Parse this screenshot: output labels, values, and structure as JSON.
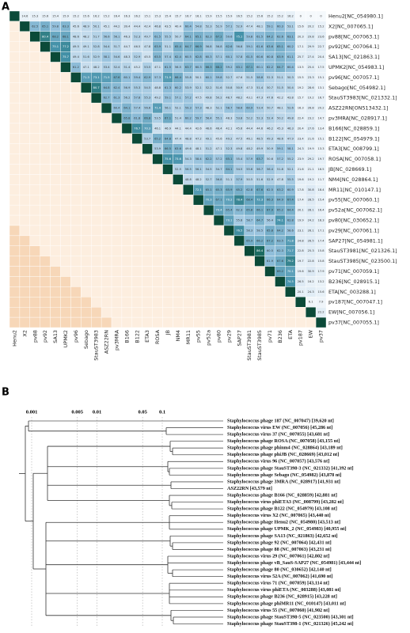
{
  "chart_data": [
    {
      "type": "heatmap",
      "panel_label": "A",
      "row_labels": [
        "Henu2[NC_054980.1]",
        "X2[NC_007065.1]",
        "pv88[NC_007063.1]",
        "pv92[NC_007064.1]",
        "SA13[NC_021863.1]",
        "UPMK2[NC_054983.1]",
        "pv96[NC_007057.1]",
        "Sebago[NC_054982.1]",
        "StauST3983[NC_021332.1]",
        "ASZ22RN[ON513432.1]",
        "pv3MRA[NC_028917.1]",
        "B166[NC_028859.1]",
        "B122[NC_054979.1]",
        "ETA3[NC_008799.1]",
        "ROSA[NC_007058.1]",
        "JB[NC_028669.1]",
        "NM4[NC_028864.1]",
        "MR11[NC_010147.1]",
        "pv55[NC_007060.1]",
        "pv52a[NC_007062.1]",
        "pv80[NC_030652.1]",
        "pv29[NC_007061.1]",
        "SAP27[NC_054981.1]",
        "StauST3981[NC_021326.1]",
        "StauST3985[NC_023500.1]",
        "pv71[NC_007059.1]",
        "B236[NC_028915.1]",
        "ETA[NC_003288.1]",
        "pv187[NC_007047.1]",
        "EW[NC_007056.1]",
        "pv37[NC_007055.1]"
      ],
      "col_labels": [
        "Henu2",
        "X2",
        "pv88",
        "pv92",
        "SA13",
        "UPMK2",
        "pv96",
        "Sebago",
        "StauST3983",
        "ASZ22RN",
        "pv3MRA",
        "B166",
        "B122",
        "ETA3",
        "ROSA",
        "JB",
        "NM4",
        "MR11",
        "pv55",
        "pv52a",
        "pv80",
        "pv29",
        "SAP27",
        "StauST3981",
        "StauST3985",
        "pv71",
        "B236",
        "ETA",
        "pv187",
        "EW",
        "pv37"
      ],
      "values": [
        [
          14.6,
          15.3,
          15.6,
          15.4,
          15.9,
          15.2,
          15.6,
          16.2,
          15.2,
          16.4,
          16.3,
          16.2,
          15.1,
          15.3,
          15.4,
          15.7,
          16.7,
          16.1,
          15.9,
          15.5,
          15.9,
          16.5,
          15.2,
          15.6,
          15.2,
          15.2,
          16.2,
          0,
          0,
          0
        ],
        [
          62.5,
          65.1,
          59.8,
          63.3,
          45.6,
          48.9,
          50.1,
          45.1,
          44.2,
          39.4,
          44.4,
          42.4,
          46.8,
          43.5,
          40.4,
          60.4,
          54.8,
          52.3,
          52.9,
          57.1,
          52.9,
          47.4,
          48.1,
          59.1,
          60.3,
          53.1,
          15.6,
          20.2,
          15.2
        ],
        [
          80.4,
          68.2,
          68.1,
          48.6,
          48.2,
          51.7,
          56.6,
          56.1,
          46.3,
          52.3,
          49.7,
          61.5,
          55.5,
          50.7,
          64.1,
          65.1,
          62.3,
          67.2,
          59.6,
          75.1,
          59.8,
          61.5,
          64.2,
          62.6,
          63.1,
          20.3,
          29.8,
          23.6
        ],
        [
          75.1,
          77.2,
          49.5,
          49.1,
          52.8,
          54.4,
          51.7,
          44.7,
          46.5,
          47.8,
          63.9,
          51.1,
          65.4,
          64.7,
          66.9,
          56.8,
          56.8,
          62.6,
          56.8,
          59.1,
          61.6,
          63.6,
          65.1,
          60.2,
          17.1,
          29.9,
          22.7
        ],
        [
          75.7,
          49.4,
          51.6,
          52.9,
          58.1,
          54.6,
          48.3,
          52.9,
          45.5,
          63.5,
          57.4,
          62.4,
          60.5,
          62.8,
          60.3,
          57.1,
          60.1,
          57.8,
          61.5,
          60.6,
          60.8,
          63.9,
          61.1,
          25.7,
          27.4,
          20.4
        ],
        [
          61.2,
          47.1,
          48.2,
          53.4,
          52.4,
          51.4,
          45.2,
          53.5,
          47.1,
          61.5,
          56.5,
          63.7,
          60.3,
          66.3,
          68.2,
          59.2,
          63.1,
          67.1,
          60.1,
          62.2,
          64.7,
          60.4,
          13.5,
          25.4,
          17.5
        ],
        [
          71.3,
          73.1,
          71.5,
          67.6,
          60.1,
          59.4,
          62.9,
          57.3,
          71.9,
          66.4,
          55.8,
          50.1,
          60.1,
          59.8,
          52.7,
          47.6,
          51.5,
          58.8,
          52.3,
          51.1,
          50.3,
          15.5,
          23.3,
          15.1
        ],
        [
          80.7,
          64.8,
          62.4,
          56.9,
          55.3,
          54.5,
          48.8,
          61.3,
          60.2,
          53.9,
          52.1,
          52.2,
          51.6,
          50.8,
          50.9,
          47.3,
          51.4,
          50.7,
          51.5,
          50.4,
          19.2,
          28.6,
          13.1
        ],
        [
          62.7,
          61.3,
          56.2,
          57.8,
          55.3,
          49.2,
          59.1,
          57.1,
          57.2,
          47.5,
          49.8,
          50.2,
          48.7,
          48.2,
          43.1,
          47.3,
          47.6,
          42.2,
          43.8,
          15.7,
          19.2,
          16.7
        ],
        [
          60.4,
          64.1,
          57.4,
          56.6,
          71.4,
          56.1,
          52.1,
          59.3,
          57.3,
          48.3,
          52.1,
          58.7,
          58.6,
          60.9,
          53.4,
          50.7,
          48.1,
          52.6,
          16.3,
          26.8,
          20.2
        ],
        [
          65.8,
          61.8,
          66.8,
          53.5,
          67.1,
          51.4,
          60.2,
          59.7,
          56.4,
          55.1,
          48.3,
          53.8,
          52.2,
          52.3,
          52.4,
          50.2,
          49.8,
          22.4,
          23.2,
          14.7
        ],
        [
          76.7,
          70.3,
          46.1,
          46.9,
          44.1,
          44.4,
          42.6,
          46.6,
          46.4,
          42.1,
          45.6,
          44.4,
          44.6,
          46.2,
          45.3,
          46.3,
          20.4,
          27.6,
          13.4
        ],
        [
          53.7,
          65.2,
          64.8,
          47.4,
          48.8,
          47.2,
          49.1,
          45.6,
          49.2,
          47.5,
          46.1,
          48.5,
          49.3,
          48.6,
          47.9,
          23.4,
          21.6,
          15.1
        ],
        [
          53.9,
          66.5,
          63.6,
          49.6,
          48.1,
          51.2,
          47.1,
          52.3,
          49.8,
          48.2,
          49.9,
          50.9,
          59.1,
          58.1,
          24.3,
          19.9,
          13.3
        ],
        [
          75.6,
          73.6,
          54.3,
          58.4,
          62.2,
          57.2,
          65.1,
          55.4,
          57.9,
          63.7,
          50.6,
          57.2,
          55.2,
          23.9,
          29.2,
          19.7
        ],
        [
          52.5,
          56.5,
          56.1,
          54.5,
          54.7,
          64.1,
          54.5,
          55.6,
          56.7,
          56.4,
          51.8,
          52.1,
          21.6,
          21.1,
          16.5
        ],
        [
          48.8,
          48.2,
          52.7,
          56.8,
          51.1,
          57.9,
          50.5,
          51.6,
          52.9,
          47.8,
          55.5,
          19.6,
          19.2,
          11.7
        ],
        [
          72.1,
          65.1,
          65.3,
          65.9,
          65.2,
          62.8,
          67.6,
          62.5,
          63.2,
          60.9,
          17.8,
          30.8,
          18.4
        ],
        [
          70.3,
          67.1,
          70.2,
          78.4,
          68.4,
          72.3,
          66.3,
          64.9,
          67.4,
          17.4,
          28.5,
          15.4
        ],
        [
          70.4,
          65.4,
          62.3,
          65.8,
          66.1,
          67.9,
          65.2,
          64.4,
          20.1,
          28.1,
          16.4
        ],
        [
          70.1,
          55.8,
          58.7,
          64.7,
          56.4,
          74.1,
          62.8,
          19.9,
          24.2,
          18.3
        ],
        [
          76.5,
          58.3,
          58.5,
          65.8,
          64.2,
          58.6,
          23.1,
          26.1,
          17.1
        ],
        [
          65.9,
          66.2,
          67.2,
          63.5,
          71.8,
          24.8,
          26.5,
          17.4
        ],
        [
          86.4,
          60.5,
          62.3,
          71.7,
          22.8,
          25.3,
          15.8
        ],
        [
          61.9,
          67.6,
          79.2,
          19.7,
          22.8,
          15.8
        ],
        [
          69.2,
          70.1,
          19.6,
          30.9,
          17.9
        ],
        [
          74.5,
          26.5,
          16.2,
          13.2
        ],
        [
          20.1,
          24.3,
          15.6
        ],
        [
          6.1,
          7.9
        ],
        [
          22.2
        ],
        []
      ]
    },
    {
      "type": "tree",
      "panel_label": "B",
      "xscale": "log",
      "xlim": [
        0.001,
        0.1
      ],
      "xticks": [
        0.001,
        0.005,
        0.01,
        0.05,
        0.1
      ],
      "leaves": [
        "Staphylococcus phage 187 (NC_007047) [39,620 nt]",
        "Staphylococcus virus EW (NC_007056) [45,286 nt]",
        "Staphylococcus virus 37 (NC_007055) [43,681 nt]",
        "Staphylococcus phage ROSA (NC_007058) [43,155 nt]",
        "Staphylococcus phage phinm4 (NC_028864) [43,189 nt]",
        "Staphylococcus phage phiJB (NC_028669) [43,012 nt]",
        "Staphylococcus virus 96 (NC_007057) [43,576 nt]",
        "Staphylococcus phage StauST398-3 (NC_021332) [41,392 nt]",
        "Staphylococcus phage Sebago (NC_054982) [43,878 nt]",
        "Staphylococcus phage 3MRA (NC_028917) [41,931 nt]",
        "ASZ22RN [43,579 nt]",
        "Staphylococcus phage B166 (NC_028859) [42,881 nt]",
        "Staphylococcus virus phiETA3 (NC_008799) [43,282 nt]",
        "Staphylococcus phage B122 (NC_054979) [43,108 nt]",
        "Staphylococcus virus X2 (NC_007065) [43,440 nt]",
        "Staphylococcus phage Henu2 (NC_054980) [43,513 nt]",
        "Staphylococcus phage UPMK_2 (NC_054983) [40,955 nt]",
        "Staphylococcus phage SA13 (NC_021863) [42,652 nt]",
        "Staphylococcus phage 92 (NC_007064) [42,431 nt]",
        "Staphylococcus phage 88 (NC_007063) [43,231 nt]",
        "Staphylococcus virus 29 (NC_007061) [42,802 nt]",
        "Staphylococcus phage vB_SauS-SAP27 (NC_054981) [43,444 nt]",
        "Staphylococcus phage 80 (NC_030652) [42,140 nt]",
        "Staphylococcus virus 52A (NC_007062) [41,690 nt]",
        "Staphylococcus virus 71 (NC_007059) [43,114 nt]",
        "Staphylococcus virus phiETA (NC_003288) [43,081 nt]",
        "Staphylococcus phage B236 (NC_028915) [43,228 nt]",
        "Staphylococcus phage phiMR11 (NC_010147) [43,011 nt]",
        "Staphylococcus virus 55 (NC_007060) [41,902 nt]",
        "Staphylococcus phage StauST398-5 (NC_023500) [43,301 nt]",
        "Staphylococcus phage StauST398-1 (NC_021326) [45,242 nt]"
      ]
    }
  ]
}
